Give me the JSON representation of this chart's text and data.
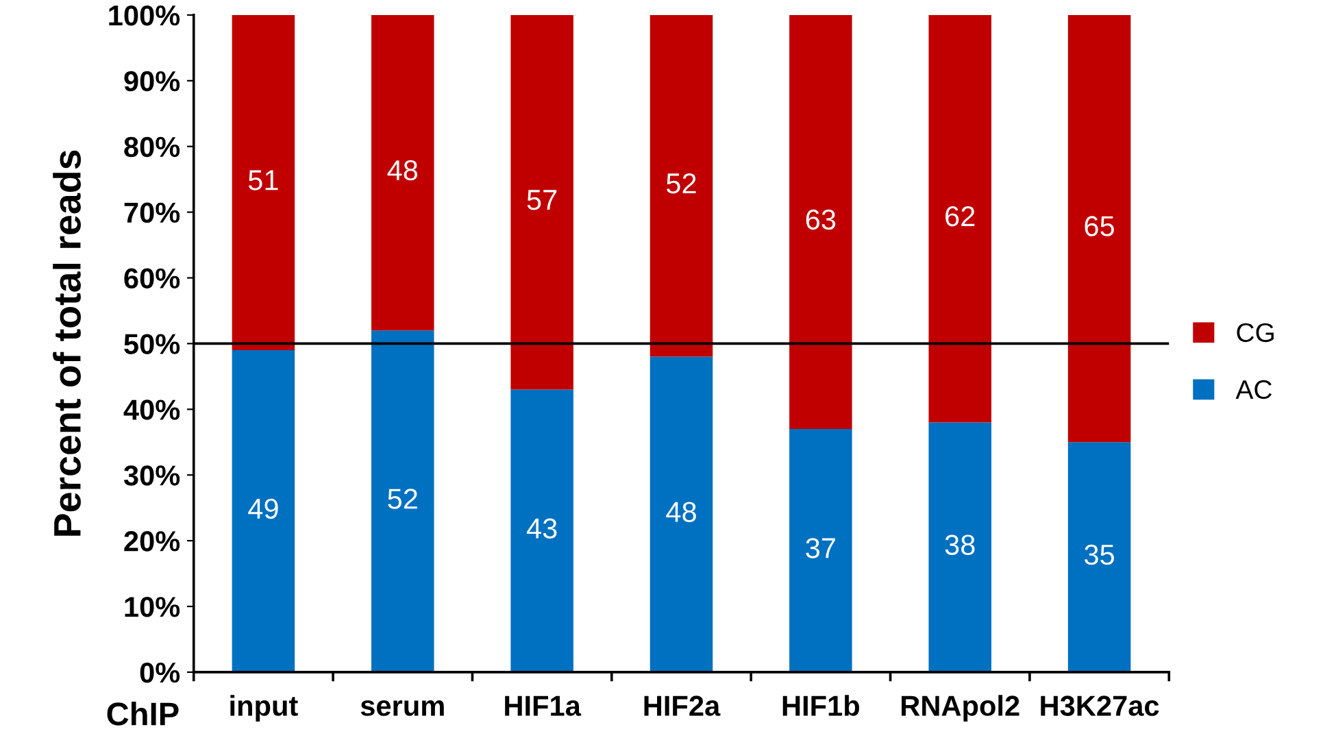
{
  "chart_data": {
    "type": "bar",
    "stacked": true,
    "ylabel": "Percent of total reads",
    "xlabel": "ChIP",
    "categories": [
      "input",
      "serum",
      "HIF1a",
      "HIF2a",
      "HIF1b",
      "RNApol2",
      "H3K27ac"
    ],
    "series": [
      {
        "name": "AC",
        "color": "#0070c0",
        "values": [
          49,
          52,
          43,
          48,
          37,
          38,
          35
        ]
      },
      {
        "name": "CG",
        "color": "#c00000",
        "values": [
          51,
          48,
          57,
          52,
          63,
          62,
          65
        ]
      }
    ],
    "ylim": [
      0,
      100
    ],
    "yticks": [
      {
        "value": 0,
        "label": "0%"
      },
      {
        "value": 10,
        "label": "10%"
      },
      {
        "value": 20,
        "label": "20%"
      },
      {
        "value": 30,
        "label": "30%"
      },
      {
        "value": 40,
        "label": "40%"
      },
      {
        "value": 50,
        "label": "50%"
      },
      {
        "value": 60,
        "label": "60%"
      },
      {
        "value": 70,
        "label": "70%"
      },
      {
        "value": 80,
        "label": "80%"
      },
      {
        "value": 90,
        "label": "90%"
      },
      {
        "value": 100,
        "label": "100%"
      }
    ],
    "ref_lines": [
      {
        "axis": "y",
        "value": 50,
        "color": "#000000",
        "line_style": "solid"
      }
    ],
    "data_labels": true,
    "legend": "right",
    "grid": false
  }
}
